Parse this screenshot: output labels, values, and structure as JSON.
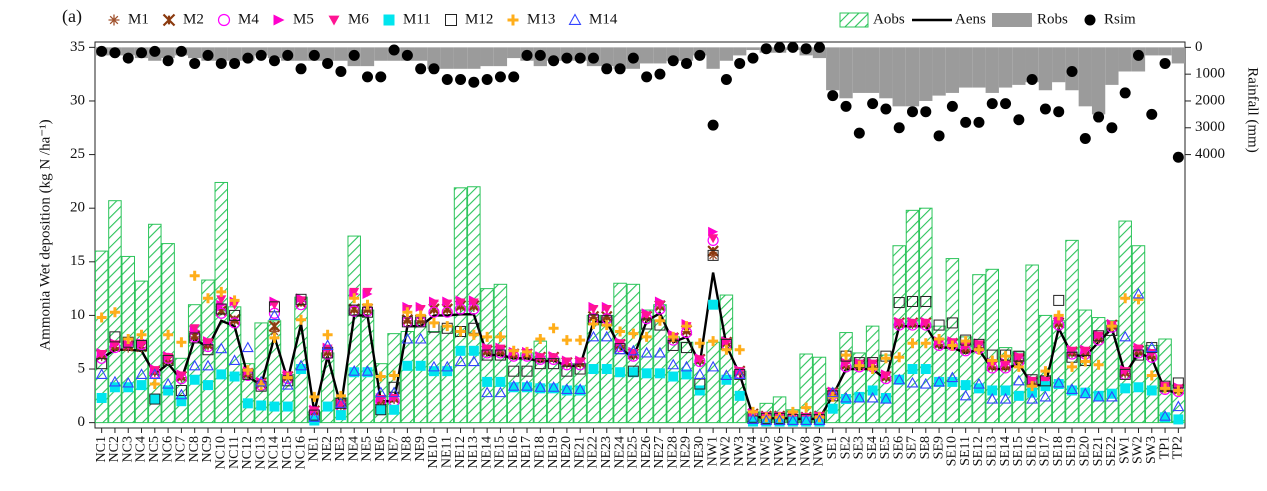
{
  "chart_data": {
    "type": "bar",
    "panel_label": "(a)",
    "ylabel": "Ammonia Wet deposition (kg N /ha⁻¹)",
    "y2label": "Rainfall (mm)",
    "ylim": [
      -0.5,
      35.5
    ],
    "yticks": [
      0,
      5,
      10,
      15,
      20,
      25,
      30,
      35
    ],
    "y2lim": [
      14200,
      -200
    ],
    "y2ticks": [
      0,
      1000,
      2000,
      3000,
      4000
    ],
    "categories": [
      "NC1",
      "NC2",
      "NC3",
      "NC4",
      "NC5",
      "NC6",
      "NC7",
      "NC8",
      "NC9",
      "NC10",
      "NC11",
      "NC12",
      "NC13",
      "NC14",
      "NC15",
      "NC16",
      "NE1",
      "NE2",
      "NE3",
      "NE4",
      "NE5",
      "NE6",
      "NE7",
      "NE8",
      "NE9",
      "NE10",
      "NE11",
      "NE12",
      "NE13",
      "NE14",
      "NE15",
      "NE16",
      "NE17",
      "NE18",
      "NE19",
      "NE20",
      "NE21",
      "NE22",
      "NE23",
      "NE24",
      "NE25",
      "NE26",
      "NE27",
      "NE28",
      "NE29",
      "NE30",
      "NW1",
      "NW2",
      "NW3",
      "NW4",
      "NW5",
      "NW6",
      "NW7",
      "NW8",
      "NW9",
      "SE1",
      "SE2",
      "SE3",
      "SE4",
      "SE5",
      "SE6",
      "SE7",
      "SE8",
      "SE9",
      "SE10",
      "SE11",
      "SE12",
      "SE13",
      "SE14",
      "SE15",
      "SE16",
      "SE17",
      "SE18",
      "SE19",
      "SE20",
      "SE21",
      "SE22",
      "SW1",
      "SW2",
      "SW3",
      "TP1",
      "TP2"
    ],
    "series": [
      {
        "name": "M1",
        "marker": "asterisk",
        "color": "#a0522d",
        "values": [
          6.2,
          7,
          7,
          7,
          4.7,
          5.8,
          4.2,
          8,
          7.2,
          10.5,
          9.5,
          4.5,
          3.6,
          8.5,
          4.2,
          11.3,
          1,
          6.5,
          1.6,
          10.5,
          10.5,
          2,
          2.2,
          9.5,
          9.5,
          10.5,
          10.5,
          10.8,
          10.8,
          6.6,
          6.6,
          6.3,
          6.3,
          6,
          6,
          5.5,
          5.5,
          9.8,
          9.8,
          7.2,
          6.3,
          9.8,
          10.8,
          7.8,
          8.5,
          5.8,
          15.6,
          7.4,
          4.7,
          0.7,
          0.5,
          0.5,
          0.5,
          0.4,
          0.5,
          2.7,
          5.3,
          5.3,
          5.3,
          4.2,
          9.2,
          9.2,
          9.2,
          7.3,
          7.3,
          6.8,
          7,
          5.2,
          5.2,
          5.8,
          3.7,
          3.7,
          9.2,
          6.5,
          6.5,
          7.8,
          9,
          4.6,
          6.6,
          6.2,
          3.2,
          3
        ]
      },
      {
        "name": "M2",
        "marker": "xstar",
        "color": "#8b3a0f",
        "values": [
          6.3,
          7.1,
          7.2,
          7.1,
          4.8,
          5.9,
          4.3,
          8.1,
          7.3,
          10.4,
          9.6,
          4.6,
          3.7,
          9,
          4.3,
          11.2,
          1.1,
          6.6,
          1.7,
          10.6,
          10.6,
          2.1,
          2.3,
          9.6,
          9.6,
          10.6,
          10.6,
          10.9,
          10.9,
          6.7,
          6.7,
          6.4,
          6.4,
          6.1,
          6.1,
          5.6,
          5.6,
          9.9,
          9.9,
          7.3,
          6.4,
          9.9,
          10.9,
          7.9,
          8.6,
          5.9,
          16,
          7.5,
          4.8,
          0.8,
          0.6,
          0.6,
          0.6,
          0.5,
          0.6,
          2.8,
          5.4,
          5.4,
          5.4,
          4.3,
          9.3,
          9.3,
          9.3,
          7.4,
          7.4,
          6.9,
          7.1,
          5.3,
          5.3,
          5.9,
          3.8,
          3.8,
          9.3,
          6.6,
          6.6,
          7.9,
          9.1,
          4.7,
          6.7,
          6.3,
          3.3,
          3.1
        ]
      },
      {
        "name": "M4",
        "marker": "circle",
        "color": "#ff00ff",
        "values": [
          6,
          7,
          7.5,
          7.3,
          4.6,
          6,
          4.1,
          8,
          7.1,
          10.2,
          9.3,
          4.4,
          3.5,
          10.2,
          4.1,
          11,
          1,
          6.4,
          1.5,
          10.4,
          10.4,
          2,
          2,
          9.4,
          9.4,
          10.3,
          10.3,
          10.6,
          10.6,
          6.5,
          6.5,
          6.2,
          6.2,
          5.9,
          5.9,
          5.4,
          5.4,
          9.7,
          9.7,
          7.1,
          6.2,
          9.7,
          10.6,
          7.7,
          8.4,
          5.7,
          17,
          7.3,
          4.6,
          0.6,
          0.5,
          0.5,
          0.5,
          0.4,
          0.5,
          2.6,
          5.2,
          5.2,
          5.2,
          4.1,
          9.1,
          9.1,
          9.1,
          7.2,
          7.2,
          6.7,
          6.9,
          5.1,
          5.1,
          5.7,
          3.6,
          3.6,
          9.1,
          6.4,
          6.4,
          7.7,
          8.9,
          4.5,
          6.5,
          6.1,
          3.1,
          2.9
        ]
      },
      {
        "name": "M5",
        "marker": "triright",
        "color": "#ff00cc",
        "values": [
          6.5,
          7.4,
          7.3,
          7.4,
          5,
          6.2,
          4.5,
          8.6,
          7.6,
          11,
          11.3,
          4.8,
          3.8,
          11.3,
          4.5,
          11.6,
          1.2,
          7,
          1.8,
          12,
          12,
          2.3,
          2.4,
          10.8,
          10.8,
          11.3,
          11.3,
          11.4,
          11.4,
          7,
          7,
          6.6,
          6.6,
          6.2,
          6.2,
          5.8,
          5.8,
          10.8,
          10.8,
          7.5,
          6.6,
          10.2,
          11.3,
          8.2,
          9.2,
          6,
          17.8,
          7.6,
          4.9,
          0.9,
          0.6,
          0.6,
          0.6,
          0.5,
          0.6,
          2.9,
          5.6,
          5.6,
          5.6,
          4.5,
          9.4,
          9.4,
          9.4,
          7.6,
          7.6,
          7.2,
          7.4,
          5.6,
          5.6,
          6.2,
          4,
          4,
          9.6,
          6.8,
          6.8,
          8.2,
          9.2,
          4.9,
          7,
          6.6,
          3.5,
          3.3
        ]
      },
      {
        "name": "M6",
        "marker": "tridown",
        "color": "#ff1493",
        "values": [
          6.4,
          7.3,
          7.2,
          7.3,
          4.9,
          6.1,
          4.4,
          8.8,
          7.5,
          11.5,
          11,
          4.7,
          3.7,
          11,
          4.4,
          11.4,
          1.1,
          6.9,
          1.7,
          12.2,
          12.2,
          2.2,
          2.3,
          10.6,
          10.6,
          11.1,
          11.1,
          11.2,
          11.2,
          6.9,
          6.9,
          6.5,
          6.5,
          6.1,
          6.1,
          5.7,
          5.7,
          10.6,
          10.6,
          7.4,
          6.5,
          10,
          11,
          8,
          9,
          5.9,
          17.2,
          7.5,
          4.8,
          0.8,
          0.6,
          0.6,
          0.6,
          0.5,
          0.6,
          2.8,
          5.5,
          5.5,
          5.5,
          4.4,
          9.3,
          9.3,
          9.3,
          7.5,
          7.5,
          7.1,
          7.3,
          5.5,
          5.5,
          6.1,
          3.9,
          3.9,
          9.5,
          6.7,
          6.7,
          8.1,
          9.1,
          4.8,
          6.9,
          6.5,
          3.4,
          3.2
        ]
      },
      {
        "name": "M11",
        "marker": "square",
        "color": "#00e5ee",
        "values": [
          2.3,
          3.3,
          3.3,
          3.5,
          2.2,
          3,
          2,
          4,
          3.5,
          4.5,
          4.3,
          1.8,
          1.6,
          1.5,
          1.5,
          5,
          0.2,
          1.5,
          0.7,
          4.7,
          4.7,
          1.2,
          1.2,
          5.3,
          5.3,
          4.8,
          4.8,
          6.7,
          6.7,
          3.8,
          3.8,
          3.3,
          3.3,
          3.2,
          3.2,
          3,
          3,
          5,
          5,
          4.7,
          4.7,
          4.6,
          4.6,
          4.3,
          4.5,
          3,
          11,
          4,
          2.5,
          0.1,
          0.1,
          0.1,
          0.1,
          0.1,
          0.1,
          1.3,
          2.2,
          2.4,
          3,
          2.3,
          4,
          5,
          5,
          3.8,
          3.8,
          3.5,
          3.2,
          3,
          3,
          2.5,
          2.8,
          3.4,
          3.6,
          3,
          2.8,
          2.5,
          2.7,
          3.2,
          3.3,
          3,
          0.5,
          0.3
        ]
      },
      {
        "name": "M12",
        "marker": "opensquare",
        "color": "#222222",
        "values": [
          5.5,
          8,
          7.5,
          7.2,
          2.2,
          5.8,
          3,
          7.9,
          6.8,
          10.6,
          10,
          4.5,
          3.4,
          10.8,
          3.9,
          11.5,
          0.7,
          6.5,
          1.8,
          10.5,
          10.3,
          1.2,
          3.3,
          9.4,
          9.4,
          8.9,
          8.8,
          8.5,
          8.8,
          6.3,
          6.3,
          4.8,
          4.8,
          5.5,
          5.5,
          4.8,
          5,
          9.6,
          9.5,
          6.9,
          4.8,
          9.2,
          9.1,
          7.2,
          7,
          3.6,
          15.6,
          7.3,
          4.5,
          0.5,
          0.4,
          0.4,
          0.3,
          0.3,
          0.3,
          2.5,
          6.2,
          5.6,
          5.6,
          6.2,
          11.2,
          11.3,
          11.3,
          9.1,
          9.3,
          7.7,
          7.3,
          6.3,
          6.3,
          6.2,
          4,
          3.9,
          11.4,
          6.1,
          5.8,
          8.1,
          8.6,
          4.5,
          6.3,
          7,
          3.4,
          3.7
        ]
      },
      {
        "name": "M13",
        "marker": "plus",
        "color": "#ffae1a",
        "values": [
          9.8,
          10.3,
          7.8,
          8.2,
          3.6,
          8.2,
          7.5,
          13.7,
          11.6,
          12.2,
          11.4,
          4.9,
          3.5,
          7.9,
          4.2,
          9.6,
          2.4,
          8.2,
          2.5,
          11.6,
          11,
          4.3,
          4.4,
          10.3,
          10,
          9.3,
          9,
          8.5,
          8.2,
          8,
          8,
          6.7,
          6.6,
          7.8,
          8.8,
          7.7,
          7.7,
          9.2,
          9.1,
          8.5,
          8.3,
          8,
          9.5,
          8,
          9,
          7.4,
          7.6,
          6.8,
          6.8,
          1,
          0.5,
          0.5,
          1,
          1.4,
          0.5,
          2.4,
          6.3,
          5.3,
          5,
          6,
          6.1,
          7.4,
          7.4,
          7.8,
          7.2,
          7.6,
          6.8,
          5.8,
          6.2,
          5.2,
          3.4,
          4.8,
          10,
          5.2,
          5.7,
          5.4,
          9,
          11.6,
          11.5,
          4.4,
          3.2,
          3
        ]
      },
      {
        "name": "M14",
        "marker": "opentri",
        "color": "#3344ff",
        "values": [
          4.5,
          3.8,
          3.7,
          4.5,
          4.5,
          3.6,
          2.6,
          5.3,
          5.3,
          6.9,
          5.8,
          7,
          3.8,
          10,
          3.5,
          5.3,
          0.5,
          7.2,
          1.8,
          4.8,
          4.8,
          2.8,
          2.8,
          7.8,
          7.8,
          5.2,
          5.2,
          5.7,
          5.7,
          2.8,
          2.8,
          3.4,
          3.4,
          3.3,
          3.3,
          3.1,
          3.1,
          8,
          8,
          6.8,
          6.7,
          6.5,
          6.5,
          5.4,
          5.2,
          4.5,
          5.2,
          4.4,
          4.5,
          0.3,
          0.2,
          0.2,
          0.2,
          0.2,
          0.2,
          2.8,
          2.3,
          2.3,
          2.3,
          2.2,
          4,
          3.7,
          3.6,
          3.8,
          4.2,
          2.5,
          3.6,
          2.2,
          2.2,
          3.9,
          2.2,
          2.4,
          3.7,
          3.1,
          2.7,
          2.4,
          2.4,
          8,
          12,
          7,
          0.6,
          1.5
        ]
      },
      {
        "name": "Aobs",
        "marker": "hatchbar",
        "color": "#2bc45a",
        "values": [
          16,
          20.7,
          15.5,
          13.2,
          18.5,
          16.7,
          6,
          11,
          13.3,
          22.4,
          10.8,
          5.5,
          9.3,
          9.5,
          4.5,
          11.7,
          1,
          6.5,
          2.3,
          17.4,
          10.5,
          5.5,
          8.3,
          8.5,
          9.5,
          8.5,
          9,
          21.9,
          22,
          12.5,
          12.9,
          6,
          6.5,
          7.6,
          6,
          5.5,
          5.5,
          10,
          10,
          13,
          12.9,
          10.5,
          11,
          8,
          7.5,
          5.5,
          7.5,
          11.9,
          4.8,
          1,
          1.8,
          2.4,
          1.2,
          6.4,
          6.1,
          3.2,
          8.4,
          6.5,
          9,
          6.3,
          16.5,
          19.8,
          20,
          9,
          15.3,
          8,
          13.8,
          14.3,
          7,
          6.6,
          14.7,
          10,
          9.5,
          17,
          10.5,
          9.8,
          9.5,
          18.8,
          16.5,
          7.2,
          7.8,
          3.5
        ]
      },
      {
        "name": "Aens",
        "marker": "line",
        "color": "#000000",
        "values": [
          6,
          6.8,
          6.8,
          6.7,
          4.5,
          5.5,
          4,
          7.8,
          7,
          9.5,
          9,
          4.3,
          3.5,
          8,
          4,
          9.2,
          1,
          6.2,
          1.5,
          10,
          10,
          2,
          2,
          9,
          9,
          10,
          10,
          10.1,
          10.1,
          6.3,
          6.3,
          6,
          6,
          5.7,
          5.8,
          5.3,
          5.3,
          9.4,
          9.4,
          7,
          6,
          9.5,
          10.2,
          7.5,
          8,
          5.5,
          14,
          7.2,
          4.5,
          0.6,
          0.4,
          0.4,
          0.4,
          0.3,
          0.4,
          2.5,
          5,
          5,
          5,
          4,
          9,
          9,
          9,
          7,
          7,
          6.5,
          6.8,
          5,
          5,
          5.5,
          3.5,
          3.5,
          8.8,
          6.3,
          6.2,
          7.5,
          8.8,
          4.5,
          6.5,
          6,
          3,
          2.8
        ]
      },
      {
        "name": "Robs",
        "marker": "bar",
        "axis": "y2",
        "color": "#9b9b9b",
        "values": [
          300,
          300,
          300,
          400,
          500,
          400,
          300,
          400,
          500,
          500,
          500,
          500,
          300,
          400,
          500,
          500,
          500,
          500,
          500,
          700,
          700,
          500,
          500,
          500,
          500,
          800,
          800,
          800,
          800,
          700,
          700,
          400,
          500,
          700,
          500,
          500,
          500,
          700,
          700,
          800,
          800,
          600,
          600,
          500,
          500,
          300,
          800,
          500,
          300,
          100,
          200,
          200,
          100,
          300,
          400,
          1600,
          1900,
          1700,
          1700,
          1900,
          2200,
          2200,
          2000,
          1800,
          1700,
          1500,
          1500,
          1700,
          1500,
          1400,
          1300,
          1600,
          1300,
          1600,
          2200,
          2500,
          1400,
          900,
          900,
          300,
          300,
          600
        ]
      },
      {
        "name": "Rsim",
        "marker": "dot",
        "axis": "y2",
        "color": "#000000",
        "values": [
          150,
          200,
          400,
          200,
          150,
          500,
          150,
          600,
          300,
          600,
          600,
          400,
          300,
          500,
          300,
          800,
          300,
          600,
          900,
          300,
          1100,
          1100,
          100,
          300,
          800,
          800,
          1200,
          1200,
          1300,
          1200,
          1100,
          1100,
          300,
          300,
          500,
          400,
          400,
          400,
          800,
          800,
          400,
          1100,
          1000,
          500,
          600,
          300,
          2900,
          1200,
          600,
          400,
          50,
          0,
          0,
          50,
          0,
          1800,
          2200,
          3200,
          2100,
          2300,
          3000,
          2400,
          2400,
          3300,
          2200,
          2800,
          2800,
          2100,
          2100,
          2700,
          1200,
          2300,
          2400,
          900,
          3400,
          2600,
          3000,
          1700,
          300,
          2500,
          600,
          4100
        ]
      }
    ]
  }
}
